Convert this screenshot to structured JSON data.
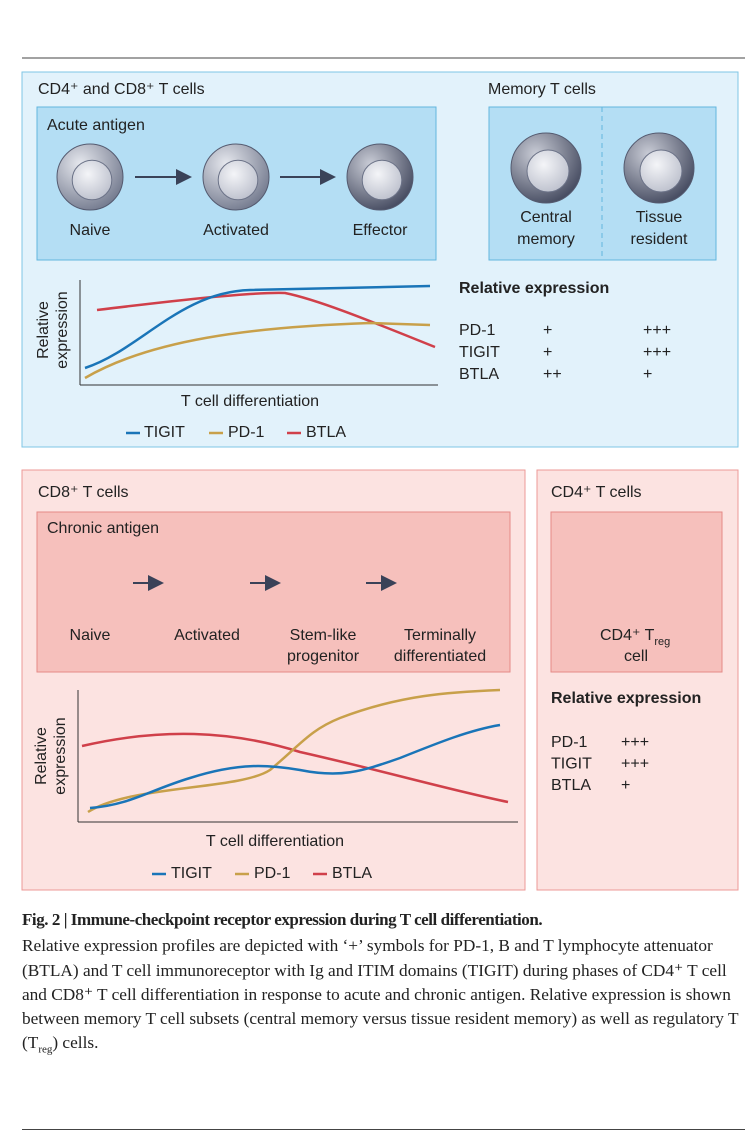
{
  "top_panel": {
    "title": "CD4⁺ and CD8⁺ T cells",
    "acute_box": {
      "title": "Acute antigen",
      "cells": [
        "Naive",
        "Activated",
        "Effector"
      ]
    },
    "memory": {
      "title": "Memory T cells",
      "cells": [
        [
          "Central",
          "memory"
        ],
        [
          "Tissue",
          "resident"
        ]
      ]
    },
    "chart": {
      "y_label": [
        "Relative",
        "expression"
      ],
      "x_label": "T cell differentiation",
      "legend": [
        "TIGIT",
        "PD-1",
        "BTLA"
      ]
    },
    "expression": {
      "title": "Relative expression",
      "rows": [
        [
          "PD-1",
          "+",
          "+++"
        ],
        [
          "TIGIT",
          "+",
          "+++"
        ],
        [
          "BTLA",
          "++",
          "+"
        ]
      ]
    }
  },
  "chronic_panel": {
    "title": "CD8⁺ T cells",
    "chronic_box": {
      "title": "Chronic antigen",
      "cells": [
        [
          "Naive"
        ],
        [
          "Activated"
        ],
        [
          "Stem-like",
          "progenitor"
        ],
        [
          "Terminally",
          "differentiated"
        ]
      ]
    },
    "chart": {
      "y_label": [
        "Relative",
        "expression"
      ],
      "x_label": "T cell differentiation",
      "legend": [
        "TIGIT",
        "PD-1",
        "BTLA"
      ]
    }
  },
  "treg_panel": {
    "title": "CD4⁺ T cells",
    "cell_label": {
      "main": "CD4⁺ T",
      "sub": "reg",
      "line2": "cell"
    },
    "expression": {
      "title": "Relative expression",
      "rows": [
        [
          "PD-1",
          "+++"
        ],
        [
          "TIGIT",
          "+++"
        ],
        [
          "BTLA",
          "+"
        ]
      ]
    }
  },
  "caption": {
    "title": "Fig. 2 | Immune-checkpoint receptor expression during T cell differentiation.",
    "body_before": "Relative expression profiles are depicted with ‘+’ symbols for PD-1, B and T lymphocyte attenuator (BTLA) and T cell immunoreceptor with Ig and ITIM domains (TIGIT) during phases of CD4⁺ T cell and CD8⁺ T cell differentiation in response to acute and chronic antigen. Relative expression is shown between memory T cell subsets (central memory versus tissue resident memory) as well as regulatory T (T",
    "body_sub": "reg",
    "body_after": ") cells."
  }
}
